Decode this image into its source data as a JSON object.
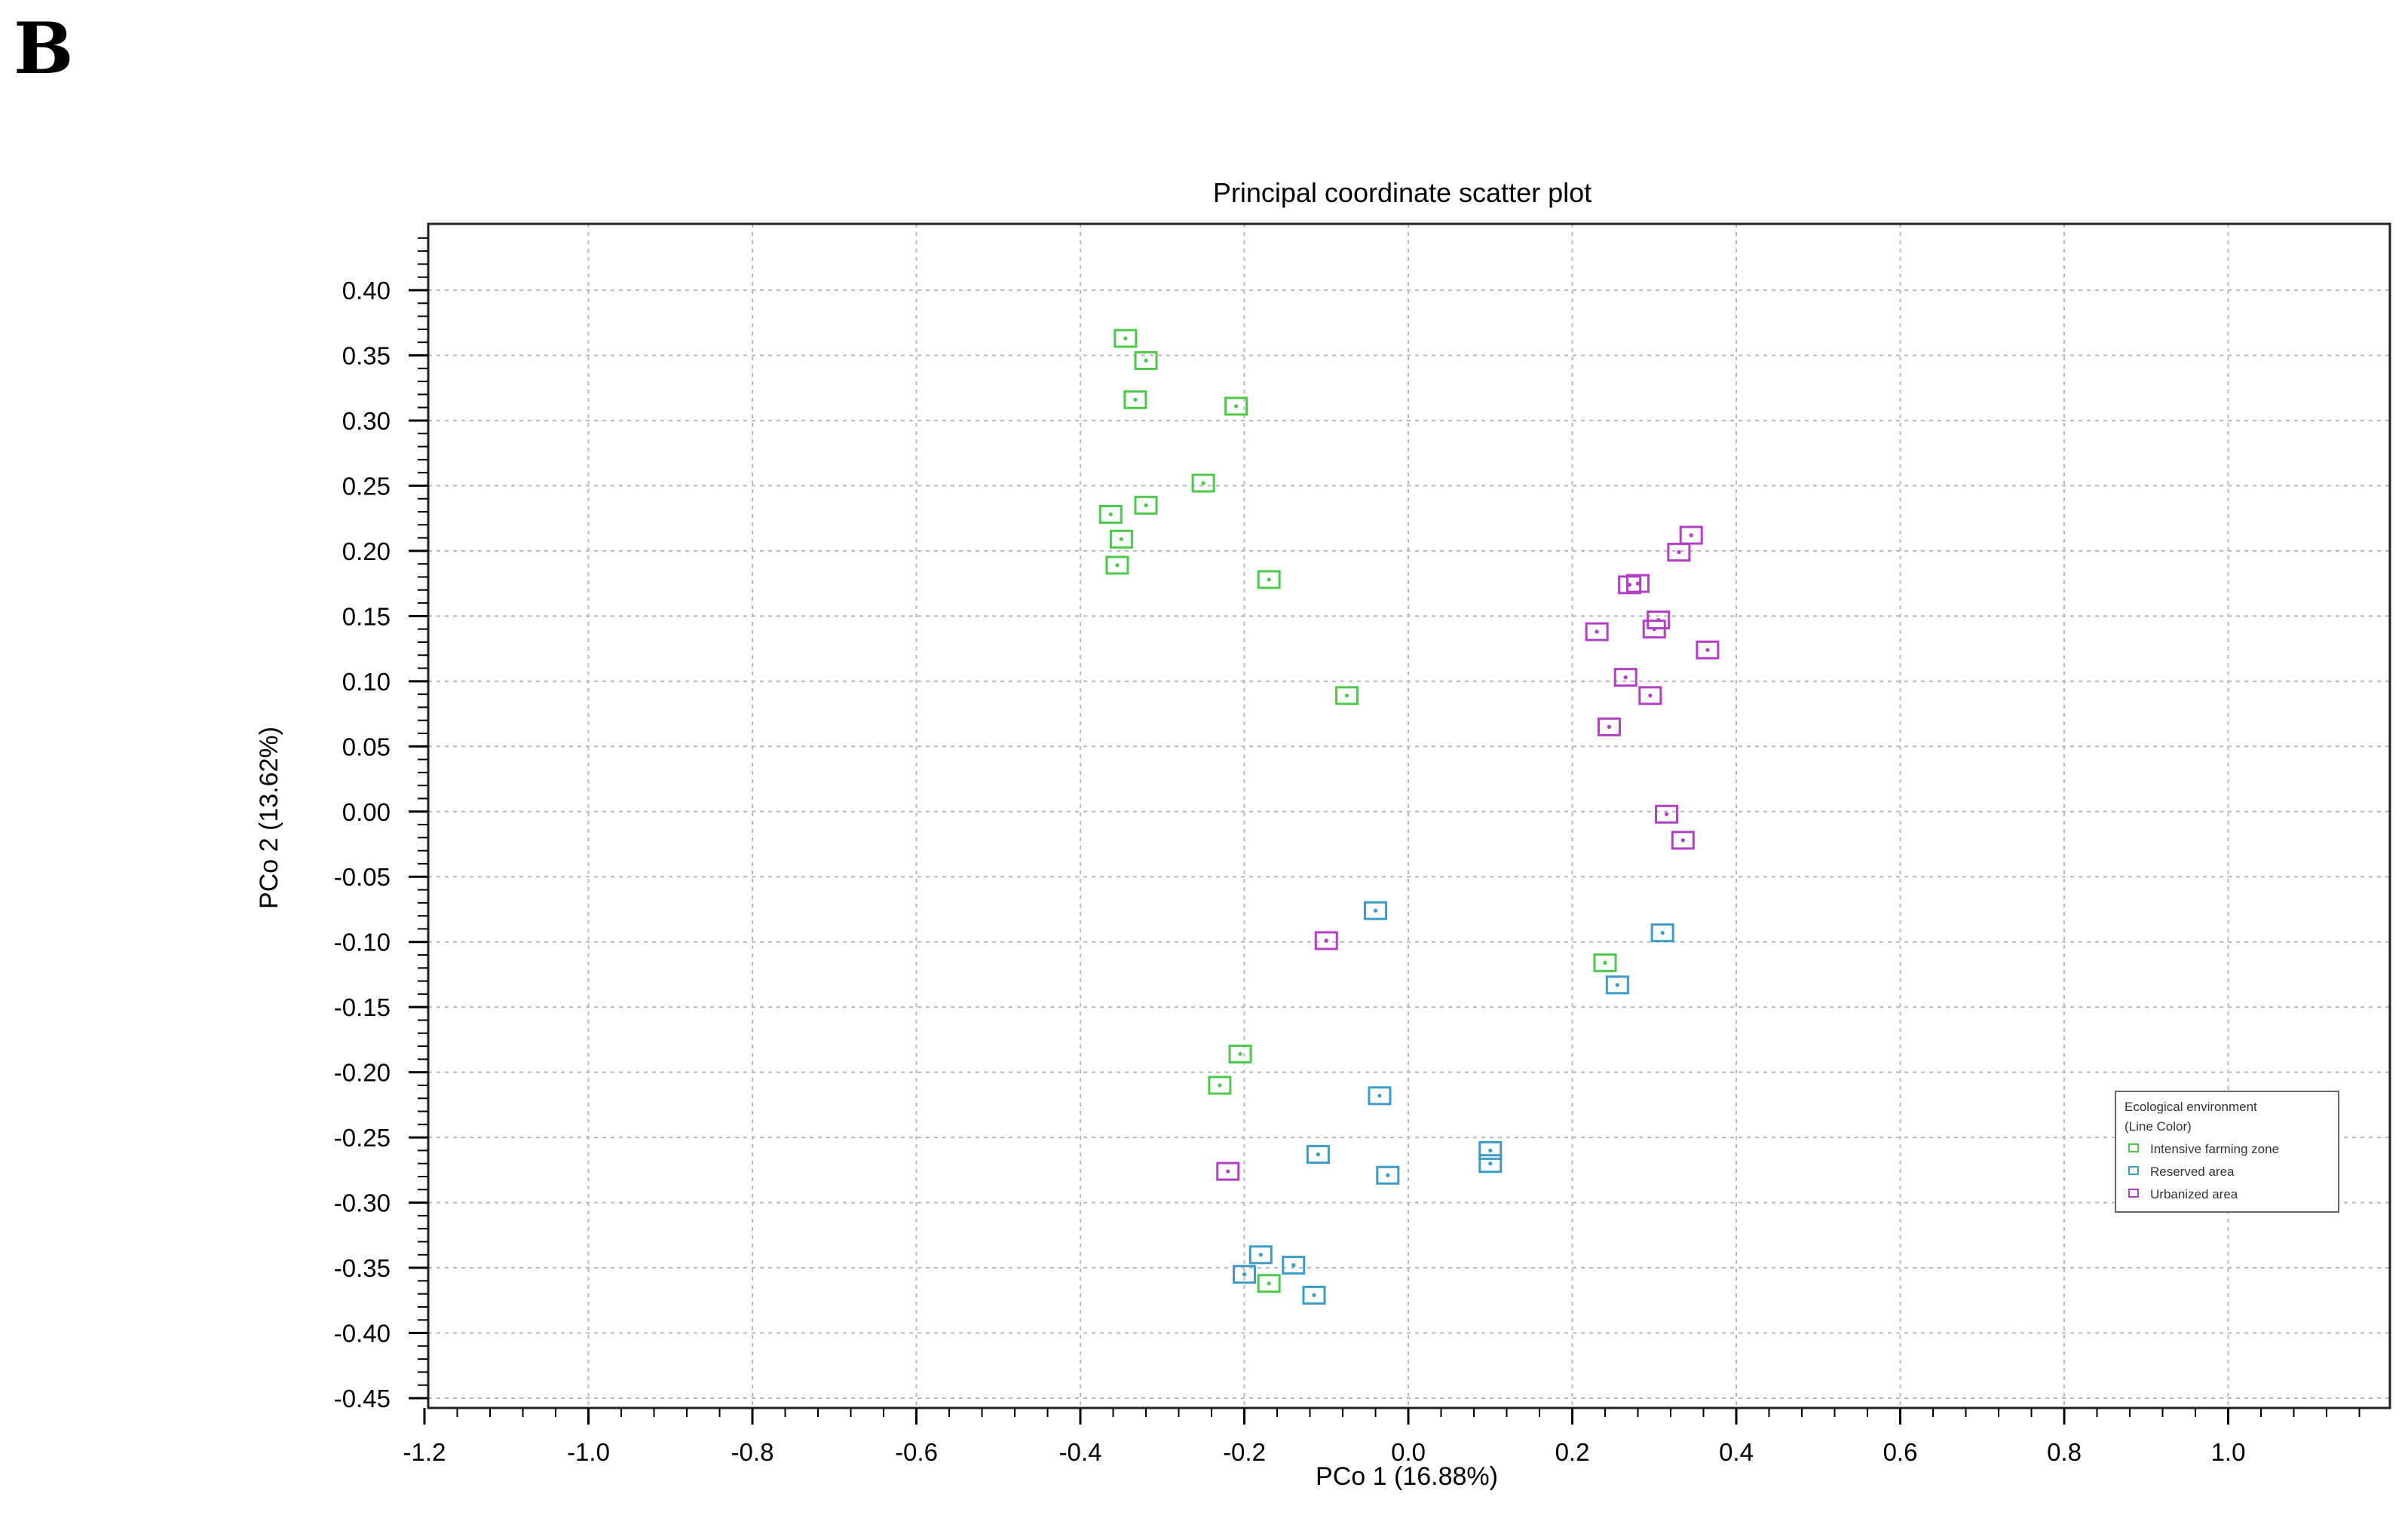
{
  "panel_label": "B",
  "chart_data": {
    "type": "scatter",
    "title": "Principal coordinate scatter plot",
    "xlabel": "PCo 1 (16.88%)",
    "ylabel": "PCo 2 (13.62%)",
    "xlim": [
      -1.2,
      1.2
    ],
    "ylim": [
      -0.45,
      0.45
    ],
    "x_ticks": [
      "-1.2",
      "-1.0",
      "-0.8",
      "-0.6",
      "-0.4",
      "-0.2",
      "0.0",
      "0.2",
      "0.4",
      "0.6",
      "0.8",
      "1.0"
    ],
    "x_tick_values": [
      -1.2,
      -1.0,
      -0.8,
      -0.6,
      -0.4,
      -0.2,
      0.0,
      0.2,
      0.4,
      0.6,
      0.8,
      1.0
    ],
    "y_ticks": [
      "0.40",
      "0.35",
      "0.30",
      "0.25",
      "0.20",
      "0.15",
      "0.10",
      "0.05",
      "0.00",
      "-0.05",
      "-0.10",
      "-0.15",
      "-0.20",
      "-0.25",
      "-0.30",
      "-0.35",
      "-0.40",
      "-0.45"
    ],
    "y_tick_values": [
      0.4,
      0.35,
      0.3,
      0.25,
      0.2,
      0.15,
      0.1,
      0.05,
      0.0,
      -0.05,
      -0.1,
      -0.15,
      -0.2,
      -0.25,
      -0.3,
      -0.35,
      -0.4,
      -0.45
    ],
    "grid": true,
    "legend": {
      "title_line1": "Ecological environment",
      "title_line2": "(Line Color)",
      "placement": "right"
    },
    "series": [
      {
        "name": "Intensive farming zone",
        "color": "#4cc94c",
        "points": [
          {
            "x": -0.345,
            "y": 0.363
          },
          {
            "x": -0.32,
            "y": 0.346
          },
          {
            "x": -0.333,
            "y": 0.316
          },
          {
            "x": -0.21,
            "y": 0.311
          },
          {
            "x": -0.25,
            "y": 0.252
          },
          {
            "x": -0.32,
            "y": 0.235
          },
          {
            "x": -0.363,
            "y": 0.228
          },
          {
            "x": -0.35,
            "y": 0.209
          },
          {
            "x": -0.355,
            "y": 0.189
          },
          {
            "x": -0.17,
            "y": 0.178
          },
          {
            "x": -0.075,
            "y": 0.089
          },
          {
            "x": 0.24,
            "y": -0.116
          },
          {
            "x": -0.205,
            "y": -0.186
          },
          {
            "x": -0.23,
            "y": -0.21
          },
          {
            "x": -0.17,
            "y": -0.362
          }
        ]
      },
      {
        "name": "Reserved area",
        "color": "#3d9bc9",
        "points": [
          {
            "x": -0.04,
            "y": -0.076
          },
          {
            "x": 0.31,
            "y": -0.093
          },
          {
            "x": 0.255,
            "y": -0.133
          },
          {
            "x": -0.035,
            "y": -0.218
          },
          {
            "x": -0.11,
            "y": -0.263
          },
          {
            "x": 0.1,
            "y": -0.26
          },
          {
            "x": 0.1,
            "y": -0.27
          },
          {
            "x": -0.025,
            "y": -0.279
          },
          {
            "x": -0.18,
            "y": -0.34
          },
          {
            "x": -0.2,
            "y": -0.355
          },
          {
            "x": -0.14,
            "y": -0.348
          },
          {
            "x": -0.115,
            "y": -0.371
          }
        ]
      },
      {
        "name": "Urbanized area",
        "color": "#b23fc6",
        "points": [
          {
            "x": 0.345,
            "y": 0.212
          },
          {
            "x": 0.33,
            "y": 0.199
          },
          {
            "x": 0.27,
            "y": 0.174
          },
          {
            "x": 0.28,
            "y": 0.175
          },
          {
            "x": 0.305,
            "y": 0.147
          },
          {
            "x": 0.3,
            "y": 0.14
          },
          {
            "x": 0.23,
            "y": 0.138
          },
          {
            "x": 0.365,
            "y": 0.124
          },
          {
            "x": 0.265,
            "y": 0.103
          },
          {
            "x": 0.295,
            "y": 0.089
          },
          {
            "x": 0.245,
            "y": 0.065
          },
          {
            "x": 0.315,
            "y": -0.002
          },
          {
            "x": 0.335,
            "y": -0.022
          },
          {
            "x": -0.1,
            "y": -0.099
          },
          {
            "x": -0.22,
            "y": -0.276
          }
        ]
      }
    ]
  }
}
